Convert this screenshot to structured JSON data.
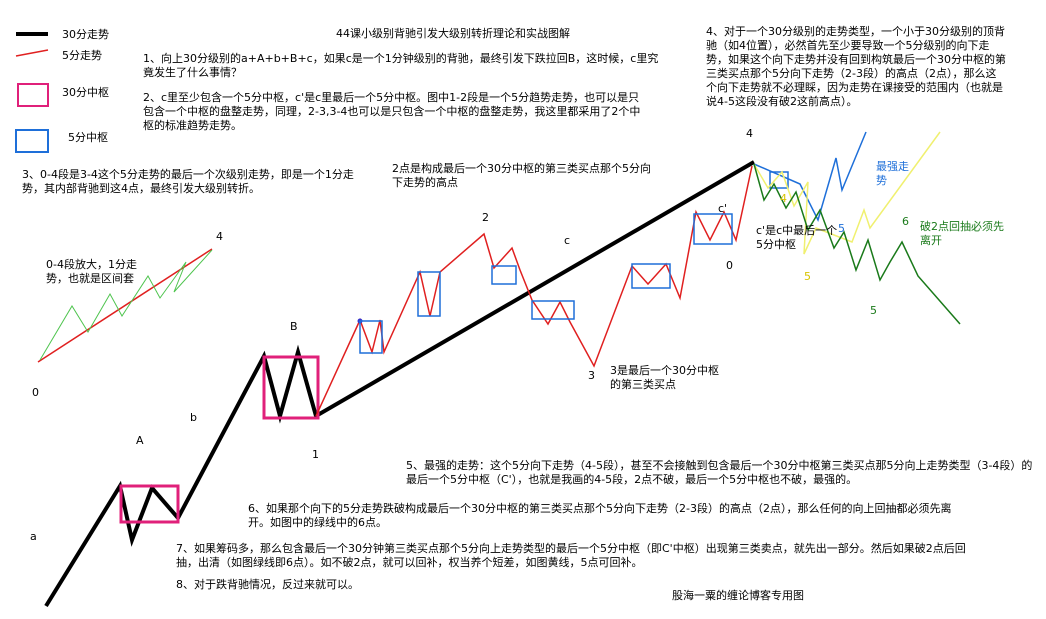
{
  "title": "44课小级别背驰引发大级别转折理论和实战图解",
  "footer": "股海一粟的缠论博客专用图",
  "legend": {
    "line30": "30分走势",
    "line5": "5分走势",
    "box30": "30分中枢",
    "box5": "5分中枢",
    "colors": {
      "black": "#000000",
      "red": "#e02020",
      "magenta": "#e0207a",
      "blue": "#1e6fd9"
    }
  },
  "notes": {
    "n1": "1、向上30分级别的a+A+b+B+c，如果c是一个1分钟级别的背驰，最终引发下跌拉回B，这时候，c里究竟发生了什么事情？",
    "n2": "2、c里至少包含一个5分中枢，c'是c里最后一个5分中枢。图中1-2段是一个5分趋势走势，也可以是只包含一个中枢的盘整走势，同理，2-3,3-4也可以是只包含一个中枢的盘整走势，我这里都采用了2个中枢的标准趋势走势。",
    "n3": "3、0-4段是3-4这个5分走势的最后一个次级别走势，即是一个1分走势，其内部背驰到这4点，最终引发大级别转折。",
    "n4": "4、对于一个30分级别的走势类型，一个小于30分级别的顶背驰（如4位置），必然首先至少要导致一个5分级别的向下走势，如果这个向下走势并没有回到构筑最后一个30分中枢的第三类买点那个5分向下走势（2-3段）的高点（2点），那么这个向下走势就不必理睬，因为走势在课接受的范围内（也就是说4-5这段没有破2这前高点）。",
    "n5": "5、最强的走势：这个5分向下走势（4-5段），甚至不会接触到包含最后一个30分中枢第三类买点那5分向上走势类型（3-4段）的最后一个5分中枢（C'），也就是我画的4-5段，2点不破，最后一个5分中枢也不破，最强的。",
    "n6": "6、如果那个向下的5分走势跌破构成最后一个30分中枢的第三类买点那个5分向下走势（2-3段）的高点（2点），那么任何的向上回抽都必须先离开。如图中的绿线中的6点。",
    "n7": "7、如果筹码多，那么包含最后一个30分钟第三类买点那个5分向上走势类型的最后一个5分中枢（即C'中枢）出现第三类卖点，就先出一部分。然后如果破2点后回抽，出清（如图绿线即6点）。如不破2点，就可以回补，权当养个短差，如图黄线，5点可回补。",
    "n8": "8、对于跌背驰情况，反过来就可以。",
    "note_point2": "2点是构成最后一个30分中枢的第三类买点那个5分向下走势的高点",
    "note_point3": "3是最后一个30分中枢的第三类买点",
    "note_zoom": "0-4段放大，1分走势，也就是区间套",
    "note_cprime": "c'是c中最后一个5分中枢",
    "note_strongest": "最强走势",
    "note_break2": "破2点回抽必须先离开"
  },
  "labels": {
    "a": "a",
    "A": "A",
    "b": "b",
    "B": "B",
    "c": "c",
    "cprime": "c'",
    "p0_left": "0",
    "p4_left": "4",
    "p1": "1",
    "p2": "2",
    "p3": "3",
    "p4": "4",
    "p0": "0",
    "p5_blue": "5",
    "p5_yellow": "5",
    "p5_green": "5",
    "p6": "6",
    "p4_small": "4"
  }
}
